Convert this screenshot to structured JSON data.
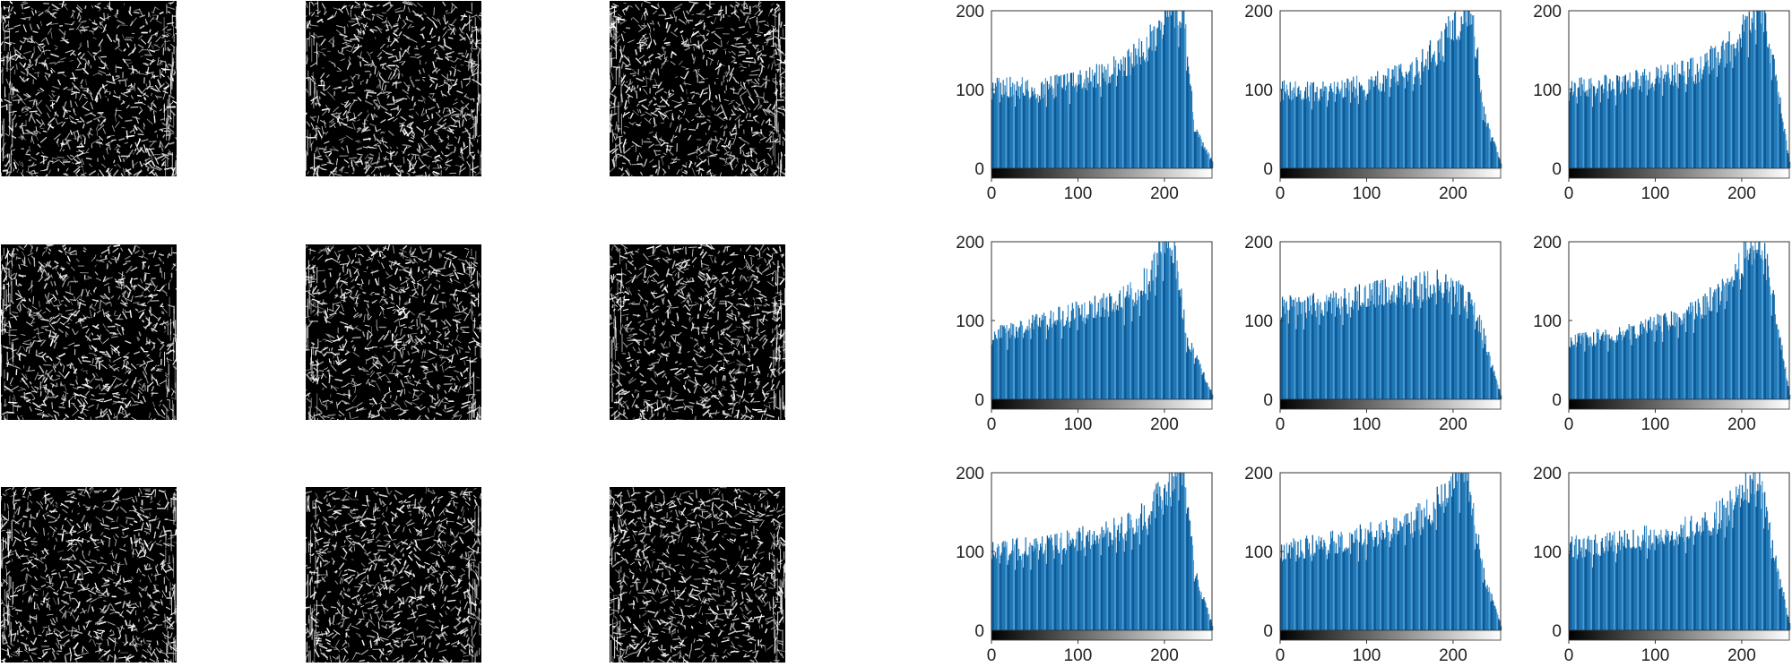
{
  "figure": {
    "images": [
      {
        "id": "edge-image-1"
      },
      {
        "id": "edge-image-2"
      },
      {
        "id": "edge-image-3"
      },
      {
        "id": "edge-image-4"
      },
      {
        "id": "edge-image-5"
      },
      {
        "id": "edge-image-6"
      },
      {
        "id": "edge-image-7"
      },
      {
        "id": "edge-image-8"
      },
      {
        "id": "edge-image-9"
      }
    ],
    "colors": {
      "bar": "#1f77b4",
      "bar_dark": "#0d5a97",
      "bar_light": "#4a9bd6",
      "axis": "#333333",
      "colorbar_start": "#000000",
      "colorbar_end": "#ffffff",
      "image_background": "#000000",
      "image_texture": "#ffffff"
    }
  },
  "chart_data": [
    {
      "type": "bar",
      "title": "",
      "xlabel": "",
      "ylabel": "",
      "xlim": [
        0,
        255
      ],
      "ylim": [
        0,
        200
      ],
      "xticks": [
        0,
        100,
        200
      ],
      "yticks": [
        0,
        100,
        200
      ],
      "colorbar": "grayscale",
      "x_control": [
        0,
        50,
        100,
        150,
        180,
        205,
        220,
        235,
        255
      ],
      "y_control": [
        105,
        100,
        110,
        128,
        155,
        200,
        205,
        50,
        8
      ]
    },
    {
      "type": "bar",
      "title": "",
      "xlabel": "",
      "ylabel": "",
      "xlim": [
        0,
        255
      ],
      "ylim": [
        0,
        200
      ],
      "xticks": [
        0,
        100,
        200
      ],
      "yticks": [
        0,
        100,
        200
      ],
      "colorbar": "grayscale",
      "x_control": [
        0,
        50,
        100,
        150,
        180,
        205,
        220,
        235,
        255
      ],
      "y_control": [
        100,
        98,
        105,
        120,
        150,
        185,
        210,
        70,
        6
      ]
    },
    {
      "type": "bar",
      "title": "",
      "xlabel": "",
      "ylabel": "",
      "xlim": [
        0,
        255
      ],
      "ylim": [
        0,
        200
      ],
      "xticks": [
        0,
        100,
        200
      ],
      "yticks": [
        0,
        100,
        200
      ],
      "colorbar": "grayscale",
      "x_control": [
        0,
        50,
        100,
        150,
        180,
        205,
        220,
        235,
        255
      ],
      "y_control": [
        100,
        105,
        115,
        125,
        150,
        180,
        210,
        140,
        8
      ]
    },
    {
      "type": "bar",
      "title": "",
      "xlabel": "",
      "ylabel": "",
      "xlim": [
        0,
        255
      ],
      "ylim": [
        0,
        200
      ],
      "xticks": [
        0,
        100,
        200
      ],
      "yticks": [
        0,
        100,
        200
      ],
      "colorbar": "grayscale",
      "x_control": [
        0,
        50,
        100,
        150,
        180,
        200,
        210,
        225,
        255
      ],
      "y_control": [
        80,
        95,
        110,
        125,
        150,
        205,
        200,
        80,
        6
      ]
    },
    {
      "type": "bar",
      "title": "",
      "xlabel": "",
      "ylabel": "",
      "xlim": [
        0,
        255
      ],
      "ylim": [
        0,
        200
      ],
      "xticks": [
        0,
        100,
        200
      ],
      "yticks": [
        0,
        100,
        200
      ],
      "colorbar": "grayscale",
      "x_control": [
        0,
        50,
        100,
        150,
        180,
        205,
        220,
        235,
        255
      ],
      "y_control": [
        115,
        120,
        130,
        140,
        145,
        135,
        125,
        80,
        5
      ]
    },
    {
      "type": "bar",
      "title": "",
      "xlabel": "",
      "ylabel": "",
      "xlim": [
        0,
        255
      ],
      "ylim": [
        0,
        200
      ],
      "xticks": [
        0,
        100,
        200
      ],
      "yticks": [
        0,
        100,
        200
      ],
      "colorbar": "grayscale",
      "x_control": [
        0,
        50,
        100,
        150,
        180,
        205,
        220,
        235,
        255
      ],
      "y_control": [
        75,
        80,
        95,
        115,
        140,
        185,
        210,
        130,
        6
      ]
    },
    {
      "type": "bar",
      "title": "",
      "xlabel": "",
      "ylabel": "",
      "xlim": [
        0,
        255
      ],
      "ylim": [
        0,
        200
      ],
      "xticks": [
        0,
        100,
        200
      ],
      "yticks": [
        0,
        100,
        200
      ],
      "colorbar": "grayscale",
      "x_control": [
        0,
        50,
        100,
        150,
        180,
        205,
        220,
        235,
        255
      ],
      "y_control": [
        100,
        105,
        115,
        128,
        150,
        185,
        205,
        70,
        6
      ]
    },
    {
      "type": "bar",
      "title": "",
      "xlabel": "",
      "ylabel": "",
      "xlim": [
        0,
        255
      ],
      "ylim": [
        0,
        200
      ],
      "xticks": [
        0,
        100,
        200
      ],
      "yticks": [
        0,
        100,
        200
      ],
      "colorbar": "grayscale",
      "x_control": [
        0,
        50,
        100,
        150,
        180,
        200,
        215,
        235,
        255
      ],
      "y_control": [
        100,
        110,
        120,
        135,
        160,
        200,
        205,
        70,
        6
      ]
    },
    {
      "type": "bar",
      "title": "",
      "xlabel": "",
      "ylabel": "",
      "xlim": [
        0,
        255
      ],
      "ylim": [
        0,
        200
      ],
      "xticks": [
        0,
        100,
        200
      ],
      "yticks": [
        0,
        100,
        200
      ],
      "colorbar": "grayscale",
      "x_control": [
        0,
        50,
        100,
        150,
        180,
        205,
        220,
        235,
        255
      ],
      "y_control": [
        105,
        110,
        120,
        130,
        150,
        185,
        185,
        110,
        8
      ]
    }
  ]
}
